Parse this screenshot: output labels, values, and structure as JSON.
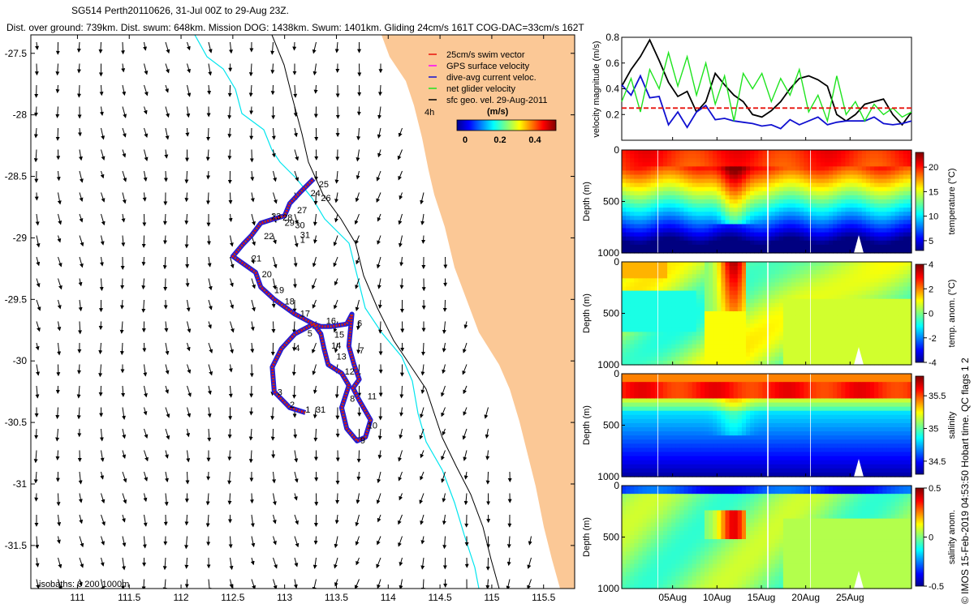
{
  "header": {
    "line1_a": "SG514 Perth20110626",
    "line1_b": "31-Jul 00Z to 29-Aug 23Z.",
    "line2": "Dist. over ground: 739km. Dist. swum: 648km. Mission DOG: 1438km. Swum: 1401km. Gliding 24cm/s 161T COG-DAC=33cm/s 162T"
  },
  "credit": "© IMOS 15-Feb-2019 04:53:50 Hobart time. QC flags 1  2",
  "colors": {
    "land": "#fbc896",
    "isobath200": "#00e5ee",
    "track_red": "#e8120c",
    "track_blue": "#1f1fd6",
    "green": "#1ee41e",
    "dac_blue": "#1010d0"
  },
  "chart_data": [
    {
      "type": "scatter",
      "name": "map",
      "xlim": [
        110.55,
        115.8
      ],
      "ylim": [
        -31.85,
        -27.35
      ],
      "xticks": [
        "111",
        "111.5",
        "112",
        "112.5",
        "113",
        "113.5",
        "114",
        "114.5",
        "115",
        "115.5"
      ],
      "yticks": [
        "-27.5",
        "-28",
        "-28.5",
        "-29",
        "-29.5",
        "-30",
        "-30.5",
        "-31",
        "-31.5"
      ],
      "legend": [
        "25cm/s swim vector",
        "GPS surface velocity",
        "dive-avg current veloc.",
        "net glider velocity",
        "sfc geo. vel. 29-Aug-2011"
      ],
      "legend_placement": "top-right",
      "interval_label": "4h",
      "colorbar": {
        "label": "(m/s)",
        "ticks": [
          "0",
          "0.2",
          "0.4"
        ],
        "range": [
          0,
          0.5
        ]
      },
      "isobaths_label": "isobaths: 0   200   1000m",
      "track": [
        [
          113.2,
          -30.42
        ],
        [
          113.05,
          -30.38
        ],
        [
          112.9,
          -30.25
        ],
        [
          112.88,
          -30.05
        ],
        [
          112.97,
          -29.9
        ],
        [
          113.1,
          -29.78
        ],
        [
          113.28,
          -29.7
        ],
        [
          113.35,
          -29.72
        ],
        [
          113.45,
          -29.72
        ],
        [
          113.6,
          -29.7
        ],
        [
          113.65,
          -29.62
        ],
        [
          113.62,
          -29.88
        ],
        [
          113.67,
          -30.03
        ],
        [
          113.72,
          -30.15
        ],
        [
          113.66,
          -30.22
        ],
        [
          113.72,
          -30.32
        ],
        [
          113.83,
          -30.48
        ],
        [
          113.78,
          -30.62
        ],
        [
          113.7,
          -30.65
        ],
        [
          113.6,
          -30.55
        ],
        [
          113.55,
          -30.38
        ],
        [
          113.62,
          -30.2
        ],
        [
          113.55,
          -30.1
        ],
        [
          113.42,
          -30.03
        ],
        [
          113.38,
          -29.9
        ],
        [
          113.35,
          -29.78
        ],
        [
          113.28,
          -29.7
        ],
        [
          113.1,
          -29.62
        ],
        [
          112.9,
          -29.5
        ],
        [
          112.77,
          -29.4
        ],
        [
          112.72,
          -29.28
        ],
        [
          112.5,
          -29.15
        ],
        [
          112.6,
          -29.05
        ],
        [
          112.68,
          -28.98
        ],
        [
          112.77,
          -28.88
        ],
        [
          112.88,
          -28.85
        ],
        [
          113.0,
          -28.82
        ],
        [
          113.05,
          -28.72
        ],
        [
          113.15,
          -28.63
        ],
        [
          113.28,
          -28.52
        ]
      ],
      "day_labels": [
        {
          "t": "1",
          "x": 113.2,
          "y": -30.42
        },
        {
          "t": "31",
          "x": 113.3,
          "y": -30.42
        },
        {
          "t": "2",
          "x": 113.05,
          "y": -30.38
        },
        {
          "t": "3",
          "x": 112.93,
          "y": -30.28
        },
        {
          "t": "4",
          "x": 113.1,
          "y": -29.92
        },
        {
          "t": "5",
          "x": 113.22,
          "y": -29.8
        },
        {
          "t": "6",
          "x": 113.7,
          "y": -29.72
        },
        {
          "t": "7",
          "x": 113.72,
          "y": -29.94
        },
        {
          "t": "8",
          "x": 113.63,
          "y": -30.33
        },
        {
          "t": "9",
          "x": 113.73,
          "y": -30.67
        },
        {
          "t": "10",
          "x": 113.8,
          "y": -30.55
        },
        {
          "t": "11",
          "x": 113.8,
          "y": -30.31
        },
        {
          "t": "12",
          "x": 113.58,
          "y": -30.11
        },
        {
          "t": "13",
          "x": 113.5,
          "y": -29.99
        },
        {
          "t": "14",
          "x": 113.45,
          "y": -29.9
        },
        {
          "t": "15",
          "x": 113.48,
          "y": -29.81
        },
        {
          "t": "16",
          "x": 113.4,
          "y": -29.7
        },
        {
          "t": "17",
          "x": 113.15,
          "y": -29.64
        },
        {
          "t": "18",
          "x": 113.0,
          "y": -29.54
        },
        {
          "t": "19",
          "x": 112.9,
          "y": -29.45
        },
        {
          "t": "20",
          "x": 112.78,
          "y": -29.32
        },
        {
          "t": "21",
          "x": 112.68,
          "y": -29.19
        },
        {
          "t": "22",
          "x": 112.8,
          "y": -29.01
        },
        {
          "t": "23",
          "x": 112.87,
          "y": -28.85
        },
        {
          "t": "24",
          "x": 113.25,
          "y": -28.66
        },
        {
          "t": "25",
          "x": 113.33,
          "y": -28.59
        },
        {
          "t": "26",
          "x": 113.35,
          "y": -28.7
        },
        {
          "t": "27",
          "x": 113.12,
          "y": -28.8
        },
        {
          "t": "28",
          "x": 112.98,
          "y": -28.86
        },
        {
          "t": "29",
          "x": 113.0,
          "y": -28.9
        },
        {
          "t": "30",
          "x": 113.1,
          "y": -28.92
        },
        {
          "t": "31",
          "x": 113.15,
          "y": -29.0
        },
        {
          "t": "1",
          "x": 113.15,
          "y": -29.04
        }
      ]
    },
    {
      "type": "line",
      "name": "velocity",
      "ylabel": "velocity magnitude (m/s)",
      "ylim": [
        0,
        0.8
      ],
      "yticks": [
        "0.2",
        "0.4",
        "0.6",
        "0.8"
      ],
      "series": [
        {
          "color": "#000000",
          "values": [
            0.42,
            0.55,
            0.65,
            0.78,
            0.62,
            0.45,
            0.34,
            0.38,
            0.22,
            0.3,
            0.52,
            0.43,
            0.35,
            0.3,
            0.2,
            0.18,
            0.23,
            0.3,
            0.4,
            0.48,
            0.5,
            0.47,
            0.42,
            0.2,
            0.15,
            0.2,
            0.28,
            0.3,
            0.32,
            0.2,
            0.12,
            0.22
          ]
        },
        {
          "color": "#1010d0",
          "values": [
            0.43,
            0.35,
            0.5,
            0.33,
            0.34,
            0.12,
            0.22,
            0.1,
            0.22,
            0.27,
            0.16,
            0.17,
            0.15,
            0.14,
            0.13,
            0.11,
            0.12,
            0.09,
            0.16,
            0.12,
            0.15,
            0.18,
            0.12,
            0.14,
            0.15,
            0.15,
            0.15,
            0.18,
            0.13,
            0.12,
            0.13,
            0.15
          ]
        },
        {
          "color": "#1ee41e",
          "values": [
            0.3,
            0.48,
            0.22,
            0.55,
            0.4,
            0.68,
            0.42,
            0.65,
            0.35,
            0.6,
            0.28,
            0.5,
            0.15,
            0.52,
            0.4,
            0.52,
            0.3,
            0.48,
            0.35,
            0.55,
            0.22,
            0.35,
            0.15,
            0.5,
            0.2,
            0.3,
            0.15,
            0.28,
            0.2,
            0.25,
            0.18,
            0.22
          ]
        },
        {
          "color": "#e8120c",
          "dashed": true,
          "values": [
            0.25,
            0.25
          ]
        }
      ]
    },
    {
      "type": "heatmap",
      "name": "temperature",
      "ylabel": "Depth (m)",
      "yticks": [
        "0",
        "500",
        "1000"
      ],
      "cbar_label": "temperature (°C)",
      "cbar_ticks": [
        "20",
        "15",
        "10",
        "5"
      ],
      "cbar_range": [
        3,
        23
      ]
    },
    {
      "type": "heatmap",
      "name": "temp-anom",
      "ylabel": "Depth (m)",
      "yticks": [
        "0",
        "500",
        "1000"
      ],
      "cbar_label": "temp. anom. (°C)",
      "cbar_ticks": [
        "4",
        "2",
        "0",
        "-2",
        "-4"
      ],
      "cbar_range": [
        -4,
        4
      ]
    },
    {
      "type": "heatmap",
      "name": "salinity",
      "ylabel": "Depth (m)",
      "yticks": [
        "0",
        "500",
        "1000"
      ],
      "cbar_label": "salinity",
      "cbar_ticks": [
        "35.5",
        "35",
        "34.5"
      ],
      "cbar_range": [
        34.3,
        35.8
      ]
    },
    {
      "type": "heatmap",
      "name": "salinity-anom",
      "ylabel": "Depth (m)",
      "yticks": [
        "0",
        "500",
        "1000"
      ],
      "cbar_label": "salinity anom.",
      "cbar_ticks": [
        "0.5",
        "0",
        "-0.5"
      ],
      "cbar_range": [
        -0.5,
        0.5
      ]
    },
    {
      "type": "axis",
      "name": "time",
      "xticks": [
        "05Aug",
        "10Aug",
        "15Aug",
        "20Aug",
        "25Aug"
      ],
      "xlim": [
        0,
        32
      ]
    }
  ]
}
